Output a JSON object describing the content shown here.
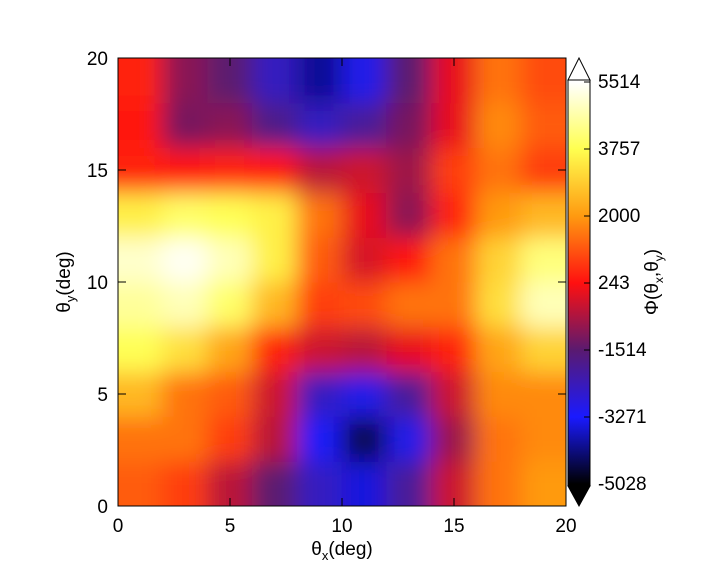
{
  "chart_data": {
    "type": "heatmap",
    "xlabel": {
      "symbol": "θ",
      "sub": "x",
      "unit": "(deg)"
    },
    "ylabel": {
      "symbol": "θ",
      "sub": "y",
      "unit": "(deg)"
    },
    "colorbar_label": [
      "Φ(θ",
      "x",
      ",θ",
      "y",
      ")"
    ],
    "x": [
      1,
      3,
      5,
      7,
      9,
      11,
      13,
      15,
      17,
      19
    ],
    "y": [
      1,
      3,
      5,
      7,
      9,
      11,
      13,
      15,
      17,
      19
    ],
    "z": [
      [
        1200,
        800,
        -500,
        -1500,
        -2500,
        -3500,
        -2000,
        -300,
        1500,
        2000
      ],
      [
        1500,
        1500,
        800,
        -500,
        -3200,
        -4500,
        -3000,
        -800,
        1500,
        1800
      ],
      [
        2500,
        1500,
        1200,
        -300,
        -2500,
        -3000,
        -2000,
        -300,
        1800,
        1800
      ],
      [
        3800,
        3200,
        2200,
        500,
        -300,
        -500,
        0,
        500,
        2200,
        3000
      ],
      [
        4500,
        4800,
        4000,
        2500,
        800,
        1000,
        1500,
        1500,
        3200,
        4800
      ],
      [
        5000,
        5400,
        4800,
        3500,
        1200,
        -200,
        300,
        1500,
        3000,
        4200
      ],
      [
        3500,
        4000,
        3800,
        3500,
        1500,
        0,
        -1000,
        500,
        2000,
        2500
      ],
      [
        500,
        300,
        500,
        300,
        -500,
        -300,
        -800,
        800,
        1500,
        800
      ],
      [
        300,
        -1200,
        -1000,
        -1800,
        -2500,
        -2000,
        -1200,
        0,
        1800,
        1200
      ],
      [
        500,
        -1000,
        -1500,
        -2500,
        -4000,
        -3000,
        -1500,
        0,
        1500,
        1000
      ]
    ],
    "xlim": [
      0,
      20
    ],
    "ylim": [
      0,
      20
    ],
    "xticks": [
      0,
      5,
      10,
      15,
      20
    ],
    "yticks": [
      0,
      5,
      10,
      15,
      20
    ],
    "clim": [
      -5028,
      5514
    ],
    "cticks": [
      -5028,
      -3271,
      -1514,
      243,
      2000,
      3757,
      5514
    ],
    "colormap": [
      "#000000",
      "#1a1aff",
      "#5a1a70",
      "#ff1010",
      "#ff9a10",
      "#ffff50",
      "#ffffff"
    ]
  }
}
